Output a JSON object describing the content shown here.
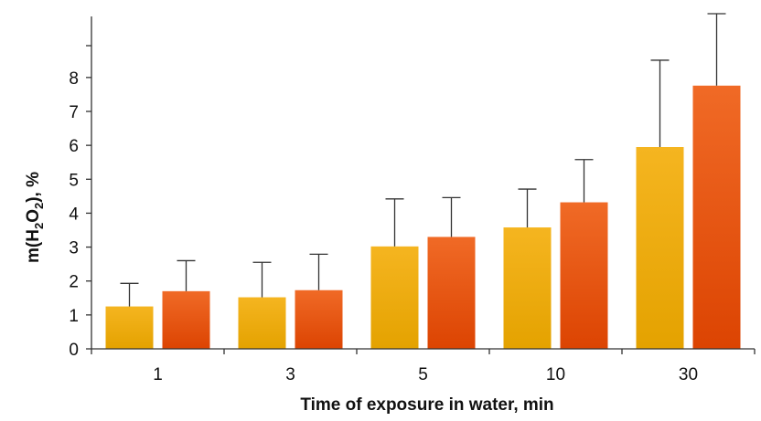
{
  "chart_data": {
    "type": "bar",
    "xlabel": "Time of exposure in water, min",
    "ylabel": {
      "prefix": "m(H",
      "sub1": "2",
      "mid": "O",
      "sub2": "2",
      "suffix": "), %"
    },
    "ylim": [
      0,
      9.8
    ],
    "yticks": [
      0,
      1,
      2,
      3,
      4,
      5,
      6,
      7,
      8
    ],
    "grid": false,
    "categories": [
      "1",
      "3",
      "5",
      "10",
      "30"
    ],
    "series": [
      {
        "values": [
          1.25,
          1.52,
          3.02,
          3.58,
          5.95
        ],
        "errors": [
          0.68,
          1.03,
          1.4,
          1.13,
          2.56
        ],
        "gradient": [
          "#f5b520",
          "#e4a200"
        ]
      },
      {
        "values": [
          1.7,
          1.73,
          3.3,
          4.32,
          7.76
        ],
        "errors": [
          0.9,
          1.06,
          1.16,
          1.26,
          2.12
        ],
        "gradient": [
          "#f06a26",
          "#dc4402"
        ]
      }
    ],
    "error_bar_color": "#333333",
    "axis_color": "#333333"
  }
}
